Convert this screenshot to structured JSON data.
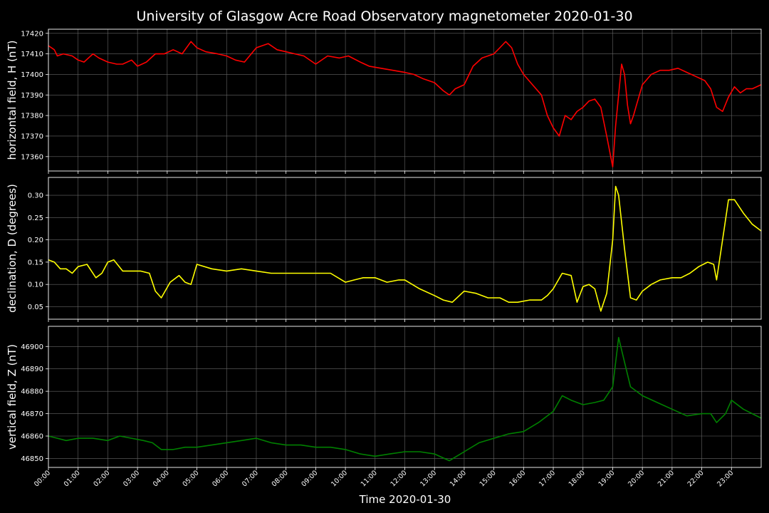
{
  "title": "University of Glasgow Acre Road Observatory magnetometer 2020-01-30",
  "xlabel": "Time 2020-01-30",
  "x_ticks": [
    "00:00",
    "01:00",
    "02:00",
    "03:00",
    "04:00",
    "05:00",
    "06:00",
    "07:00",
    "08:00",
    "09:00",
    "10:00",
    "11:00",
    "12:00",
    "13:00",
    "14:00",
    "15:00",
    "16:00",
    "17:00",
    "18:00",
    "19:00",
    "20:00",
    "21:00",
    "22:00",
    "23:00"
  ],
  "colors": {
    "background": "#000000",
    "grid": "#666666",
    "H": "#ff0000",
    "D": "#ffff00",
    "Z": "#008000"
  },
  "chart_data": [
    {
      "type": "line",
      "ylabel": "horizontal field, H (nT)",
      "color": "#ff0000",
      "xlim": [
        0,
        24
      ],
      "ylim": [
        17353,
        17422
      ],
      "yticks": [
        17360,
        17370,
        17380,
        17390,
        17400,
        17410,
        17420
      ],
      "grid": true,
      "x": [
        0,
        0.2,
        0.3,
        0.5,
        0.8,
        1.0,
        1.2,
        1.5,
        1.7,
        2.0,
        2.3,
        2.5,
        2.8,
        3.0,
        3.3,
        3.6,
        3.9,
        4.2,
        4.5,
        4.8,
        5.0,
        5.3,
        5.7,
        6.0,
        6.3,
        6.6,
        7.0,
        7.4,
        7.7,
        8.0,
        8.3,
        8.6,
        9.0,
        9.4,
        9.8,
        10.1,
        10.5,
        10.8,
        11.2,
        11.6,
        12.0,
        12.3,
        12.6,
        13.0,
        13.3,
        13.5,
        13.7,
        14.0,
        14.3,
        14.6,
        15.0,
        15.2,
        15.4,
        15.6,
        15.8,
        16.0,
        16.3,
        16.6,
        16.8,
        17.0,
        17.2,
        17.4,
        17.6,
        17.8,
        18.0,
        18.2,
        18.4,
        18.6,
        18.8,
        19.0,
        19.1,
        19.2,
        19.3,
        19.4,
        19.5,
        19.6,
        19.7,
        19.8,
        20.0,
        20.3,
        20.6,
        20.9,
        21.2,
        21.5,
        21.8,
        22.1,
        22.3,
        22.5,
        22.7,
        22.9,
        23.1,
        23.3,
        23.5,
        23.7,
        24.0
      ],
      "y": [
        17414,
        17412,
        17409,
        17410,
        17409,
        17407,
        17406,
        17410,
        17408,
        17406,
        17405,
        17405,
        17407,
        17404,
        17406,
        17410,
        17410,
        17412,
        17410,
        17416,
        17413,
        17411,
        17410,
        17409,
        17407,
        17406,
        17413,
        17415,
        17412,
        17411,
        17410,
        17409,
        17405,
        17409,
        17408,
        17409,
        17406,
        17404,
        17403,
        17402,
        17401,
        17400,
        17398,
        17396,
        17392,
        17390,
        17393,
        17395,
        17404,
        17408,
        17410,
        17413,
        17416,
        17413,
        17405,
        17400,
        17395,
        17390,
        17380,
        17374,
        17370,
        17380,
        17378,
        17382,
        17384,
        17387,
        17388,
        17384,
        17370,
        17355,
        17375,
        17390,
        17405,
        17400,
        17385,
        17376,
        17380,
        17385,
        17395,
        17400,
        17402,
        17402,
        17403,
        17401,
        17399,
        17397,
        17393,
        17384,
        17382,
        17389,
        17394,
        17391,
        17393,
        17393,
        17395
      ]
    },
    {
      "type": "line",
      "ylabel": "declination, D (degrees)",
      "color": "#ffff00",
      "xlim": [
        0,
        24
      ],
      "ylim": [
        0.022,
        0.34
      ],
      "yticks": [
        0.05,
        0.1,
        0.15,
        0.2,
        0.25,
        0.3
      ],
      "grid": true,
      "x": [
        0,
        0.2,
        0.4,
        0.6,
        0.8,
        1.0,
        1.3,
        1.6,
        1.8,
        2.0,
        2.2,
        2.5,
        2.8,
        3.1,
        3.4,
        3.6,
        3.8,
        4.1,
        4.4,
        4.6,
        4.8,
        5.0,
        5.5,
        6.0,
        6.5,
        7.0,
        7.5,
        8.0,
        8.5,
        9.0,
        9.5,
        10.0,
        10.3,
        10.6,
        11.0,
        11.4,
        11.8,
        12.0,
        12.5,
        13.0,
        13.3,
        13.6,
        14.0,
        14.4,
        14.8,
        15.2,
        15.5,
        15.8,
        16.2,
        16.6,
        16.8,
        17.0,
        17.3,
        17.6,
        17.8,
        18.0,
        18.2,
        18.4,
        18.6,
        18.8,
        19.0,
        19.1,
        19.2,
        19.4,
        19.6,
        19.8,
        20.0,
        20.3,
        20.6,
        21.0,
        21.3,
        21.6,
        21.9,
        22.2,
        22.4,
        22.5,
        22.7,
        22.9,
        23.1,
        23.4,
        23.7,
        24.0
      ],
      "y": [
        0.155,
        0.15,
        0.135,
        0.135,
        0.125,
        0.14,
        0.145,
        0.115,
        0.125,
        0.15,
        0.155,
        0.13,
        0.13,
        0.13,
        0.125,
        0.085,
        0.07,
        0.105,
        0.12,
        0.105,
        0.1,
        0.145,
        0.135,
        0.13,
        0.135,
        0.13,
        0.125,
        0.125,
        0.125,
        0.125,
        0.125,
        0.105,
        0.11,
        0.115,
        0.115,
        0.105,
        0.11,
        0.11,
        0.09,
        0.075,
        0.065,
        0.06,
        0.085,
        0.08,
        0.07,
        0.07,
        0.06,
        0.06,
        0.065,
        0.065,
        0.075,
        0.09,
        0.125,
        0.12,
        0.06,
        0.095,
        0.1,
        0.09,
        0.04,
        0.08,
        0.2,
        0.32,
        0.3,
        0.18,
        0.07,
        0.065,
        0.085,
        0.1,
        0.11,
        0.115,
        0.115,
        0.125,
        0.14,
        0.15,
        0.145,
        0.11,
        0.2,
        0.29,
        0.29,
        0.26,
        0.235,
        0.22
      ]
    },
    {
      "type": "line",
      "ylabel": "vertical field, Z (nT)",
      "color": "#008000",
      "xlim": [
        0,
        24
      ],
      "ylim": [
        46846,
        46909
      ],
      "yticks": [
        46850,
        46860,
        46870,
        46880,
        46890,
        46900
      ],
      "grid": true,
      "x": [
        0,
        0.3,
        0.6,
        1.0,
        1.5,
        2.0,
        2.4,
        2.8,
        3.2,
        3.5,
        3.8,
        4.2,
        4.6,
        5.0,
        5.5,
        6.0,
        6.5,
        7.0,
        7.5,
        8.0,
        8.5,
        9.0,
        9.5,
        10.0,
        10.5,
        11.0,
        11.5,
        12.0,
        12.5,
        13.0,
        13.5,
        14.0,
        14.5,
        15.0,
        15.5,
        16.0,
        16.5,
        17.0,
        17.3,
        17.6,
        18.0,
        18.4,
        18.7,
        19.0,
        19.2,
        19.4,
        19.6,
        20.0,
        20.5,
        21.0,
        21.5,
        22.0,
        22.3,
        22.5,
        22.8,
        23.0,
        23.4,
        23.7,
        24.0
      ],
      "y": [
        46860,
        46859,
        46858,
        46859,
        46859,
        46858,
        46860,
        46859,
        46858,
        46857,
        46854,
        46854,
        46855,
        46855,
        46856,
        46857,
        46858,
        46859,
        46857,
        46856,
        46856,
        46855,
        46855,
        46854,
        46852,
        46851,
        46852,
        46853,
        46853,
        46852,
        46849,
        46853,
        46857,
        46859,
        46861,
        46862,
        46866,
        46871,
        46878,
        46876,
        46874,
        46875,
        46876,
        46882,
        46904,
        46893,
        46882,
        46878,
        46875,
        46872,
        46869,
        46870,
        46870,
        46866,
        46870,
        46876,
        46872,
        46870,
        46868
      ]
    }
  ]
}
